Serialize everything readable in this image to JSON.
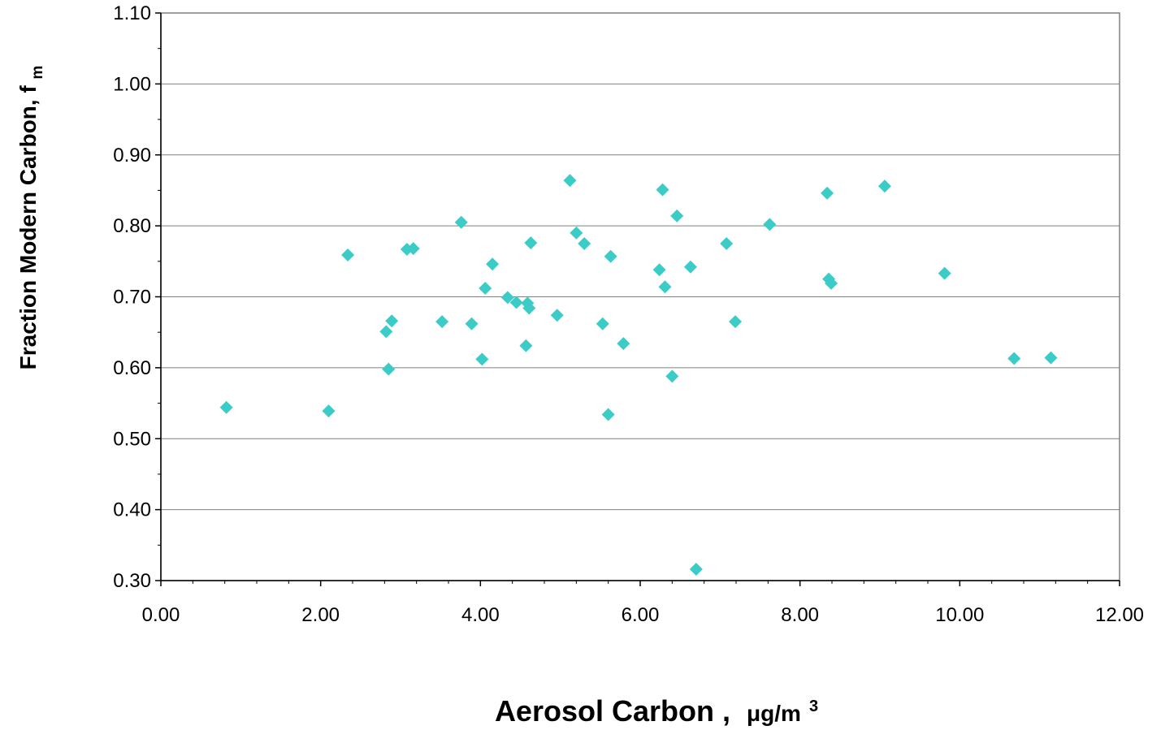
{
  "chart_data": {
    "type": "scatter",
    "title": "",
    "xlabel": {
      "main": "Aerosol Carbon ,",
      "unit_prefix": "μg/m",
      "unit_sup": "3"
    },
    "ylabel": {
      "main": "Fraction Modern Carbon, f",
      "sub": "m"
    },
    "xlim": [
      0,
      12
    ],
    "ylim": [
      0.3,
      1.1
    ],
    "x_ticks": [
      0,
      2,
      4,
      6,
      8,
      10,
      12
    ],
    "x_tick_labels": [
      "0.00",
      "2.00",
      "4.00",
      "6.00",
      "8.00",
      "10.00",
      "12.00"
    ],
    "y_ticks": [
      0.3,
      0.4,
      0.5,
      0.6,
      0.7,
      0.8,
      0.9,
      1.0,
      1.1
    ],
    "y_tick_labels": [
      "0.30",
      "0.40",
      "0.50",
      "0.60",
      "0.70",
      "0.80",
      "0.90",
      "1.00",
      "1.10"
    ],
    "grid": "horizontal",
    "marker": "diamond",
    "marker_color": "#3CCCC8",
    "series": [
      {
        "points": [
          [
            0.82,
            0.544
          ],
          [
            2.1,
            0.539
          ],
          [
            2.34,
            0.759
          ],
          [
            2.82,
            0.651
          ],
          [
            2.85,
            0.598
          ],
          [
            2.89,
            0.666
          ],
          [
            3.08,
            0.767
          ],
          [
            3.16,
            0.768
          ],
          [
            3.52,
            0.665
          ],
          [
            3.76,
            0.805
          ],
          [
            3.89,
            0.662
          ],
          [
            4.02,
            0.612
          ],
          [
            4.06,
            0.712
          ],
          [
            4.15,
            0.746
          ],
          [
            4.34,
            0.699
          ],
          [
            4.45,
            0.692
          ],
          [
            4.57,
            0.631
          ],
          [
            4.59,
            0.691
          ],
          [
            4.61,
            0.684
          ],
          [
            4.63,
            0.776
          ],
          [
            4.96,
            0.674
          ],
          [
            5.12,
            0.864
          ],
          [
            5.2,
            0.79
          ],
          [
            5.3,
            0.775
          ],
          [
            5.53,
            0.662
          ],
          [
            5.6,
            0.534
          ],
          [
            5.63,
            0.757
          ],
          [
            5.79,
            0.634
          ],
          [
            6.24,
            0.738
          ],
          [
            6.28,
            0.851
          ],
          [
            6.31,
            0.714
          ],
          [
            6.4,
            0.588
          ],
          [
            6.46,
            0.814
          ],
          [
            6.63,
            0.742
          ],
          [
            6.7,
            0.316
          ],
          [
            7.08,
            0.775
          ],
          [
            7.19,
            0.665
          ],
          [
            7.62,
            0.802
          ],
          [
            8.34,
            0.846
          ],
          [
            8.36,
            0.725
          ],
          [
            8.39,
            0.719
          ],
          [
            9.06,
            0.856
          ],
          [
            9.81,
            0.733
          ],
          [
            10.68,
            0.613
          ],
          [
            11.14,
            0.614
          ]
        ]
      }
    ]
  }
}
